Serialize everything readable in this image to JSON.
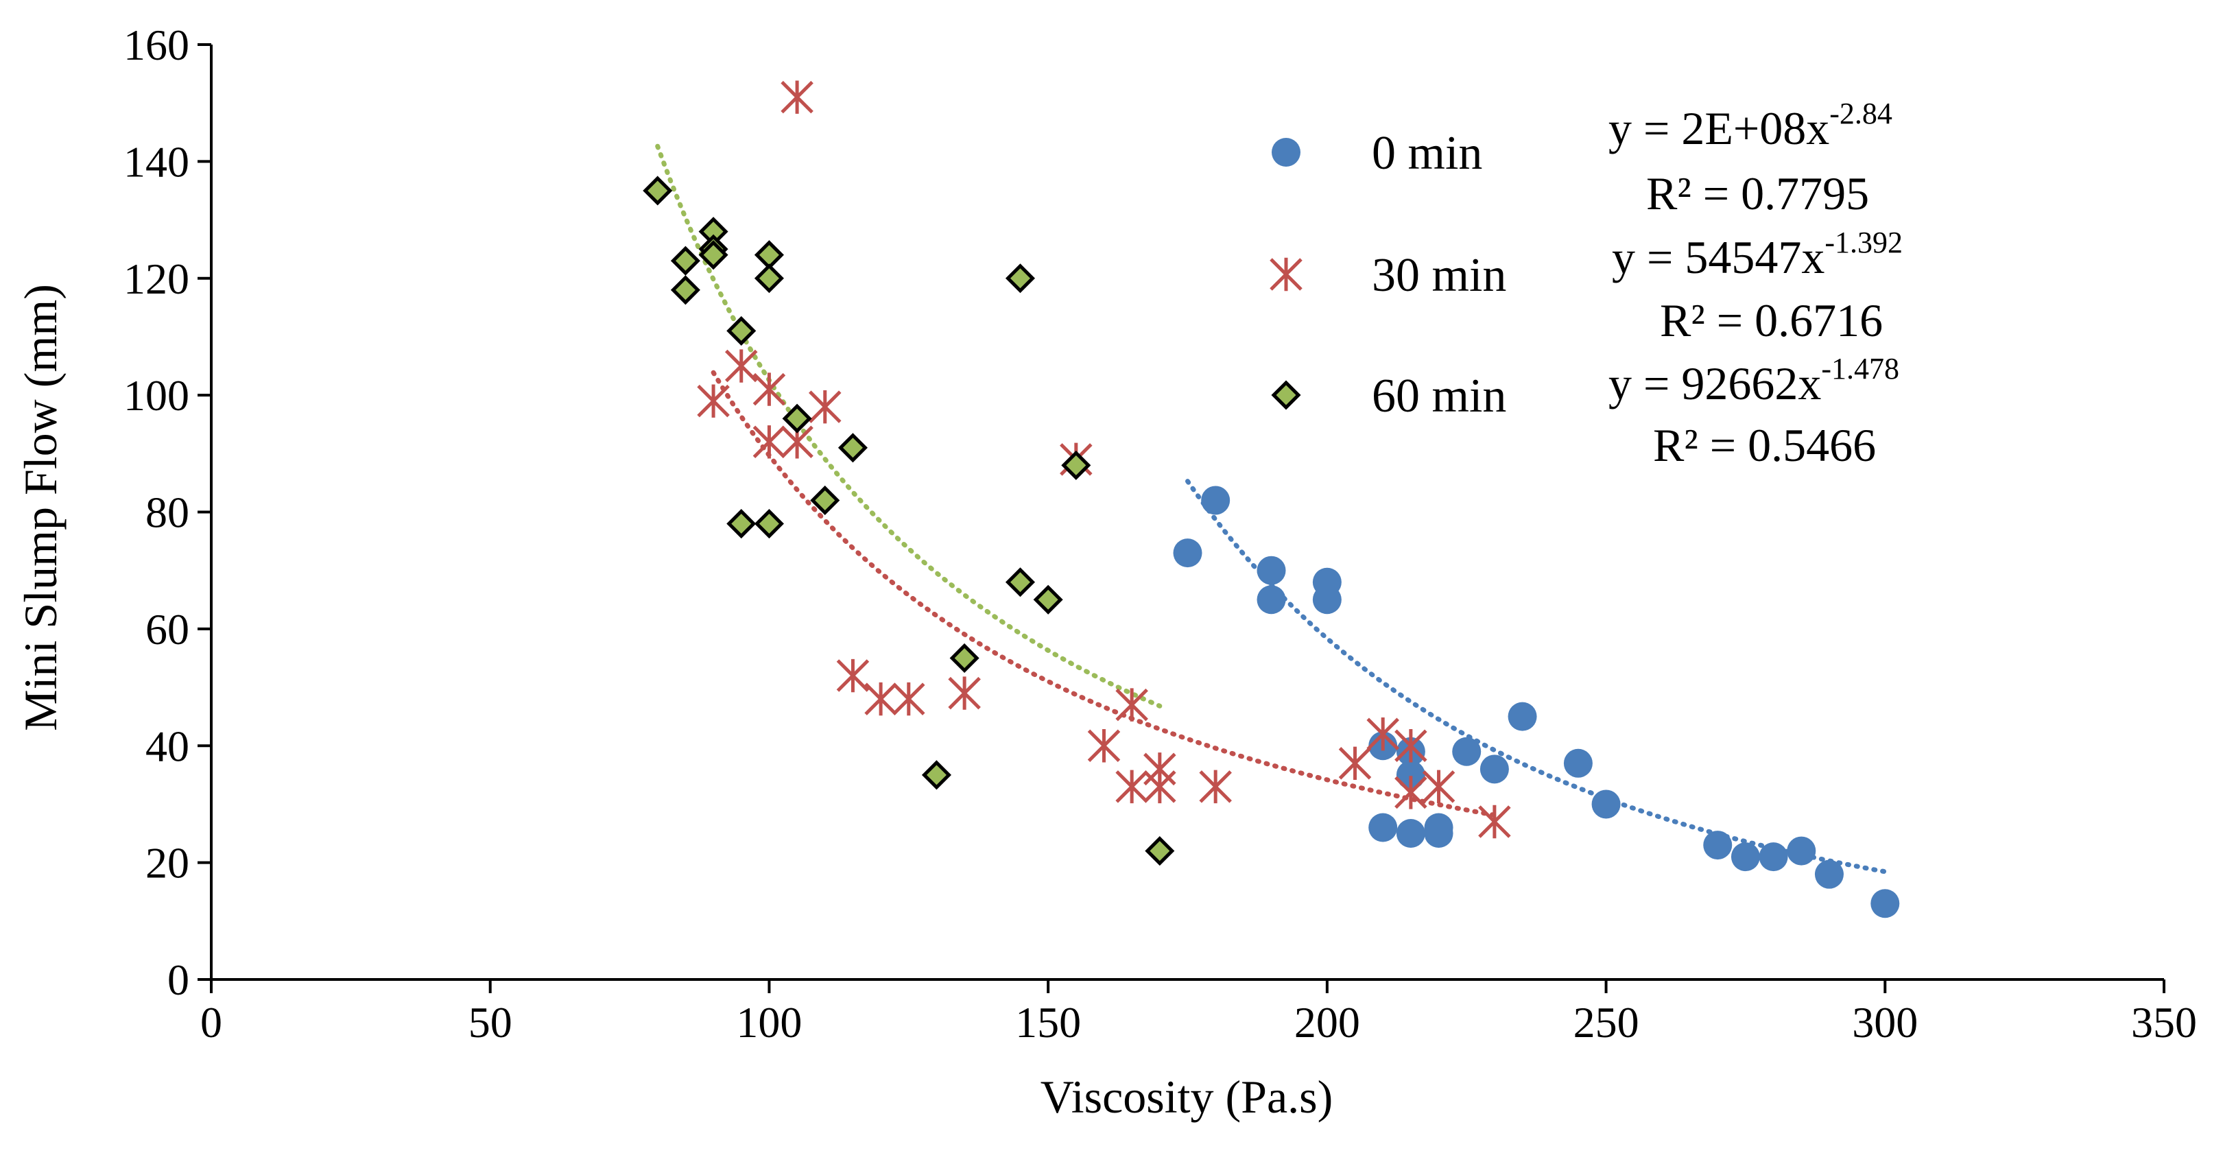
{
  "chart_data": {
    "type": "scatter",
    "title": "",
    "xlabel": "Viscosity (Pa.s)",
    "ylabel": "Mini Slump Flow (mm)",
    "xlim": [
      0,
      350
    ],
    "ylim": [
      0,
      160
    ],
    "x_ticks": [
      0,
      50,
      100,
      150,
      200,
      250,
      300,
      350
    ],
    "y_ticks": [
      0,
      20,
      40,
      60,
      80,
      100,
      120,
      140,
      160
    ],
    "grid": false,
    "legend_position": "top-right",
    "series": [
      {
        "name": "0 min",
        "marker": "circle",
        "color": "#4a7ebb",
        "points": [
          [
            175,
            73
          ],
          [
            180,
            82
          ],
          [
            190,
            70
          ],
          [
            190,
            65
          ],
          [
            200,
            68
          ],
          [
            200,
            65
          ],
          [
            210,
            40
          ],
          [
            210,
            26
          ],
          [
            215,
            35
          ],
          [
            215,
            39
          ],
          [
            215,
            25
          ],
          [
            220,
            26
          ],
          [
            220,
            25
          ],
          [
            225,
            39
          ],
          [
            230,
            36
          ],
          [
            235,
            45
          ],
          [
            245,
            37
          ],
          [
            250,
            30
          ],
          [
            270,
            23
          ],
          [
            275,
            21
          ],
          [
            280,
            21
          ],
          [
            285,
            22
          ],
          [
            290,
            18
          ],
          [
            300,
            13
          ]
        ],
        "trendline": {
          "equation": "y = 2E+08x",
          "exponent": "-2.84",
          "r2": "R² = 0.7795",
          "a": 200000000.0,
          "b": -2.84,
          "x_range": [
            175,
            300
          ]
        }
      },
      {
        "name": "30 min",
        "marker": "asterisk",
        "color": "#c0504d",
        "points": [
          [
            90,
            99
          ],
          [
            95,
            105
          ],
          [
            100,
            101
          ],
          [
            100,
            92
          ],
          [
            105,
            92
          ],
          [
            110,
            98
          ],
          [
            105,
            151
          ],
          [
            115,
            52
          ],
          [
            120,
            48
          ],
          [
            125,
            48
          ],
          [
            135,
            49
          ],
          [
            155,
            89
          ],
          [
            160,
            40
          ],
          [
            165,
            47
          ],
          [
            165,
            33
          ],
          [
            170,
            36
          ],
          [
            170,
            33
          ],
          [
            180,
            33
          ],
          [
            205,
            37
          ],
          [
            210,
            42
          ],
          [
            215,
            40
          ],
          [
            215,
            32
          ],
          [
            220,
            33
          ],
          [
            230,
            27
          ]
        ],
        "trendline": {
          "equation": "y = 54547x",
          "exponent": "-1.392",
          "r2": "R² = 0.6716",
          "a": 54547,
          "b": -1.392,
          "x_range": [
            90,
            230
          ]
        }
      },
      {
        "name": "60 min",
        "marker": "diamond",
        "color": "#9bbb59",
        "points": [
          [
            80,
            135
          ],
          [
            85,
            123
          ],
          [
            85,
            118
          ],
          [
            90,
            128
          ],
          [
            90,
            125
          ],
          [
            90,
            124
          ],
          [
            95,
            111
          ],
          [
            95,
            78
          ],
          [
            100,
            124
          ],
          [
            100,
            120
          ],
          [
            100,
            78
          ],
          [
            105,
            96
          ],
          [
            110,
            82
          ],
          [
            115,
            91
          ],
          [
            130,
            35
          ],
          [
            135,
            55
          ],
          [
            145,
            120
          ],
          [
            145,
            68
          ],
          [
            150,
            65
          ],
          [
            155,
            88
          ],
          [
            170,
            22
          ]
        ],
        "trendline": {
          "equation": "y = 92662x",
          "exponent": "-1.478",
          "r2": "R² = 0.5466",
          "a": 92662,
          "b": -1.478,
          "x_range": [
            80,
            170
          ]
        }
      }
    ]
  }
}
